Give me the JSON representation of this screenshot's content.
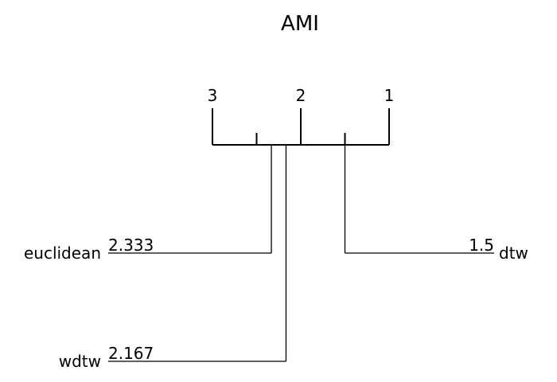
{
  "chart_data": {
    "type": "critical-difference",
    "title": "AMI",
    "axis": {
      "ticks": [
        3,
        2,
        1
      ],
      "range": [
        3,
        1
      ],
      "minor_ticks": [
        2.5,
        1.5
      ]
    },
    "methods": [
      {
        "name": "euclidean",
        "rank": 2.333,
        "rank_label": "2.333",
        "side": "left"
      },
      {
        "name": "wdtw",
        "rank": 2.167,
        "rank_label": "2.167",
        "side": "left"
      },
      {
        "name": "dtw",
        "rank": 1.5,
        "rank_label": "1.5",
        "side": "right"
      }
    ],
    "colors": {
      "ink": "#000000",
      "background": "#ffffff"
    }
  }
}
